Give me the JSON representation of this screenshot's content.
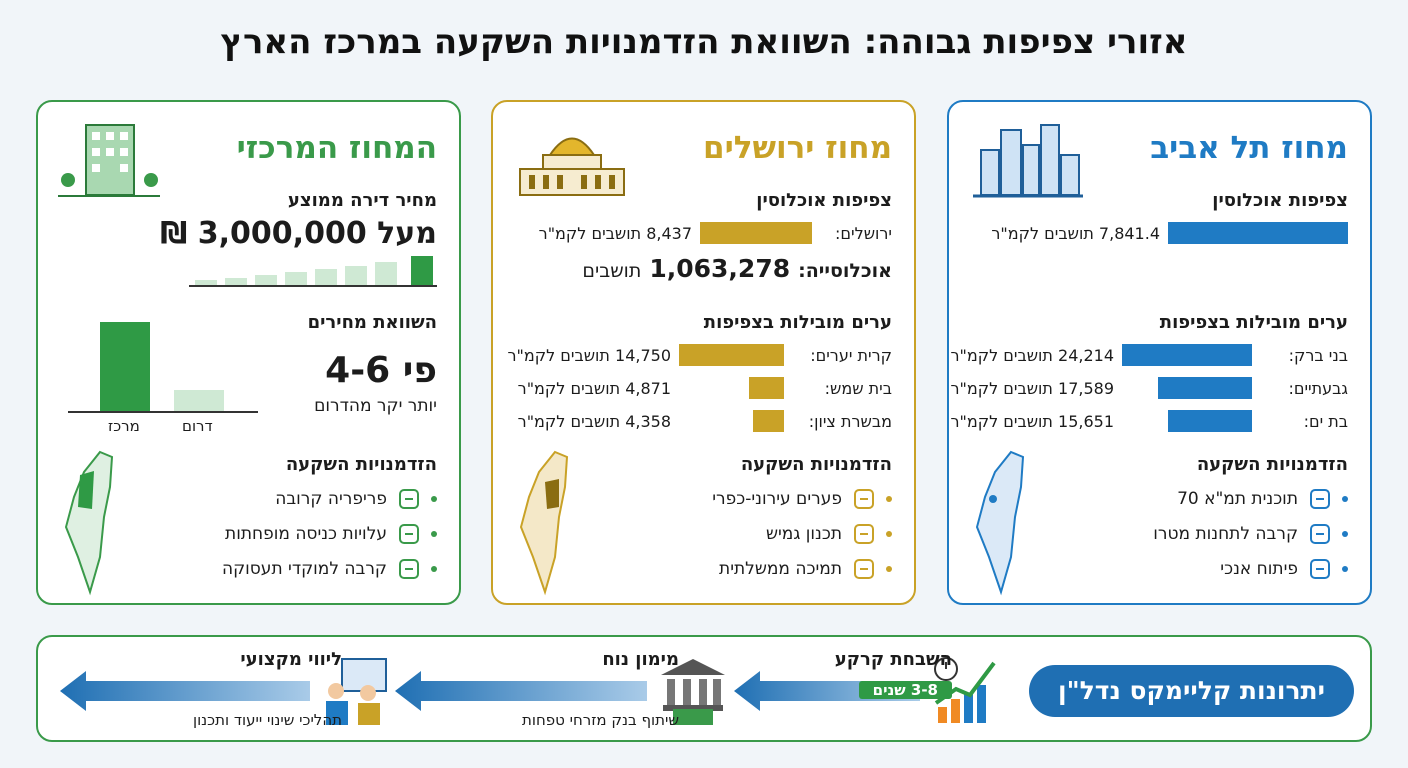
{
  "title": "אזורי צפיפות גבוהה: השוואת הזדמנויות השקעה במרכז הארץ",
  "districts": [
    {
      "name": "מחוז תל אביב",
      "color": "#1f7bc4",
      "density_heading": "צפיפות אוכלוסין",
      "density": {
        "value": 7841.4,
        "label": "7,841.4 תושבים לקמ\"ר"
      },
      "cities_heading": "ערים מובילות בצפיפות",
      "cities": [
        {
          "name": "בני ברק:",
          "value": 24214,
          "label": "24,214 תושבים לקמ\"ר"
        },
        {
          "name": "גבעתיים:",
          "value": 17589,
          "label": "17,589 תושבים לקמ\"ר"
        },
        {
          "name": "בת ים:",
          "value": 15651,
          "label": "15,651 תושבים לקמ\"ר"
        }
      ],
      "opportunities_heading": "הזדמנויות השקעה",
      "opportunities": [
        "תוכנית תמ\"א 70",
        "קרבה לתחנות מטרו",
        "פיתוח אנכי"
      ]
    },
    {
      "name": "מחוז ירושלים",
      "color": "#c9a227",
      "density_heading": "צפיפות אוכלוסין",
      "density": {
        "city": "ירושלים:",
        "value": 8437,
        "label": "8,437 תושבים לקמ\"ר"
      },
      "population": {
        "label": "אוכלוסייה:",
        "value": "1,063,278",
        "unit": "תושבים"
      },
      "cities_heading": "ערים מובילות בצפיפות",
      "cities": [
        {
          "name": "קרית יערים:",
          "value": 14750,
          "label": "14,750 תושבים לקמ\"ר"
        },
        {
          "name": "בית שמש:",
          "value": 4871,
          "label": "4,871 תושבים לקמ\"ר"
        },
        {
          "name": "מבשרת ציון:",
          "value": 4358,
          "label": "4,358 תושבים לקמ\"ר"
        }
      ],
      "opportunities_heading": "הזדמנויות השקעה",
      "opportunities": [
        "פערים עירוני-כפרי",
        "תכנון גמיש",
        "תמיכה ממשלתית"
      ]
    },
    {
      "name": "המחוז המרכזי",
      "color": "#3a9a4a",
      "price_heading": "מחיר דירה ממוצע",
      "price": "מעל 3,000,000 ₪",
      "comparison_heading": "השוואת מחירים",
      "ratio": "פי 4-6",
      "ratio_note": "יותר יקר מהדרום",
      "comparison_categories": [
        "מרכז",
        "דרום"
      ],
      "opportunities_heading": "הזדמנויות השקעה",
      "opportunities": [
        "פריפריה קרובה",
        "עלויות כניסה מופחתות",
        "קרבה למוקדי תעסוקה"
      ]
    }
  ],
  "advantages": {
    "title": "יתרונות קליימקס נדל\"ן",
    "steps": [
      {
        "title": "השבחת קרקע",
        "sub": "3-8 שנים"
      },
      {
        "title": "מימון נוח",
        "sub": "שיתוף בנק מזרחי טפחות"
      },
      {
        "title": "ליווי מקצועי",
        "sub": "תהליכי שינוי ייעוד ותכנון"
      }
    ]
  }
}
